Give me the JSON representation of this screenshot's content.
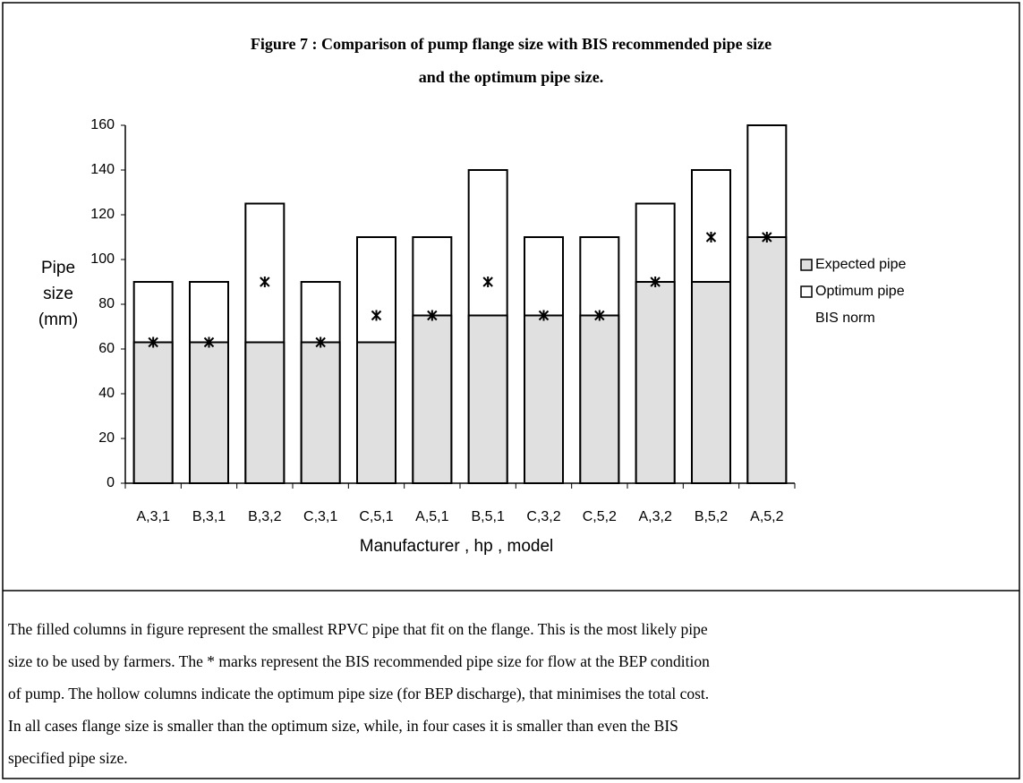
{
  "chart_data": {
    "type": "bar",
    "title": "Figure 7 : Comparison of pump flange size with BIS recommended pipe size",
    "subtitle": "and the optimum pipe size.",
    "x_label": "Manufacturer , hp , model",
    "y_label": [
      "Pipe",
      "size",
      "(mm)"
    ],
    "categories": [
      "A,3,1",
      "B,3,1",
      "B,3,2",
      "C,3,1",
      "C,5,1",
      "A,5,1",
      "B,5,1",
      "C,3,2",
      "C,5,2",
      "A,3,2",
      "B,5,2",
      "A,5,2"
    ],
    "series": [
      {
        "name": "Expected pipe",
        "color": "#e0e0e0",
        "values": [
          63,
          63,
          63,
          63,
          63,
          75,
          75,
          75,
          75,
          90,
          90,
          110
        ]
      },
      {
        "name": "Optimum pipe",
        "color": "#ffffff",
        "values": [
          90,
          90,
          125,
          90,
          110,
          110,
          140,
          110,
          110,
          125,
          140,
          160
        ]
      },
      {
        "name": "BIS norm",
        "color": "#000000",
        "marker": "asterisk",
        "values": [
          63,
          63,
          90,
          63,
          75,
          75,
          90,
          75,
          75,
          90,
          110,
          110
        ]
      }
    ],
    "ylim": [
      0,
      160
    ],
    "yticks": [
      0,
      20,
      40,
      60,
      80,
      100,
      120,
      140,
      160
    ],
    "grid": false,
    "legend": "right"
  },
  "caption": [
    "The filled columns in figure represent the smallest RPVC pipe that fit on the flange. This is the most likely pipe",
    "size to be used by farmers. The * marks represent the BIS recommended pipe size for flow at the BEP condition",
    "of pump. The hollow columns indicate the optimum pipe size (for BEP discharge), that minimises the total cost.",
    "In all cases flange size is smaller than the optimum size, while, in four cases it is smaller than even the BIS",
    "specified pipe size."
  ]
}
